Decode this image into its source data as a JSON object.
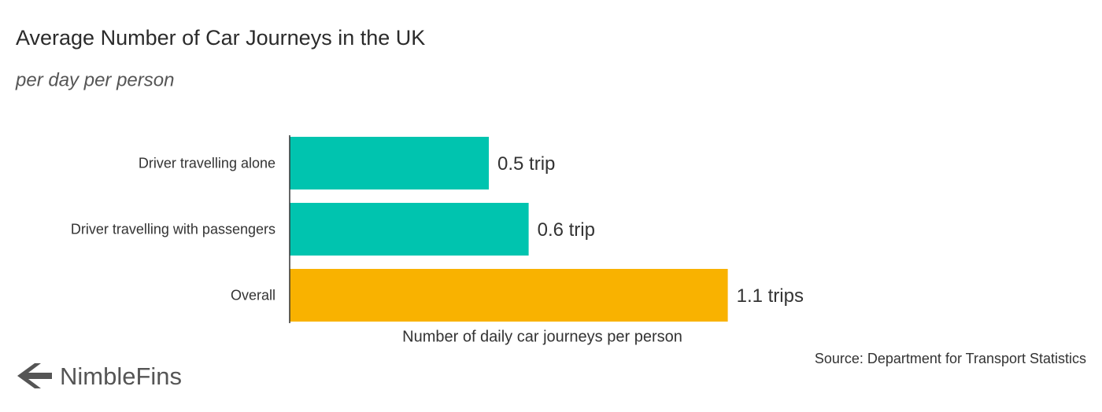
{
  "chart_data": {
    "type": "hbar",
    "title": "Average Number of Car Journeys in the UK",
    "subtitle": "per day per person",
    "x_label": "Number of daily car journeys per person",
    "source": "Source: Department for Transport Statistics",
    "brand": "NimbleFins",
    "categories": [
      "Driver travelling alone",
      "Driver travelling with passengers",
      "Overall"
    ],
    "values": [
      0.5,
      0.6,
      1.1
    ],
    "value_labels": [
      "0.5 trip",
      "0.6 trip",
      "1.1 trips"
    ],
    "colors": [
      "#00c4af",
      "#00c4af",
      "#f9b200"
    ],
    "xlim": [
      0,
      2
    ],
    "grid": false
  }
}
